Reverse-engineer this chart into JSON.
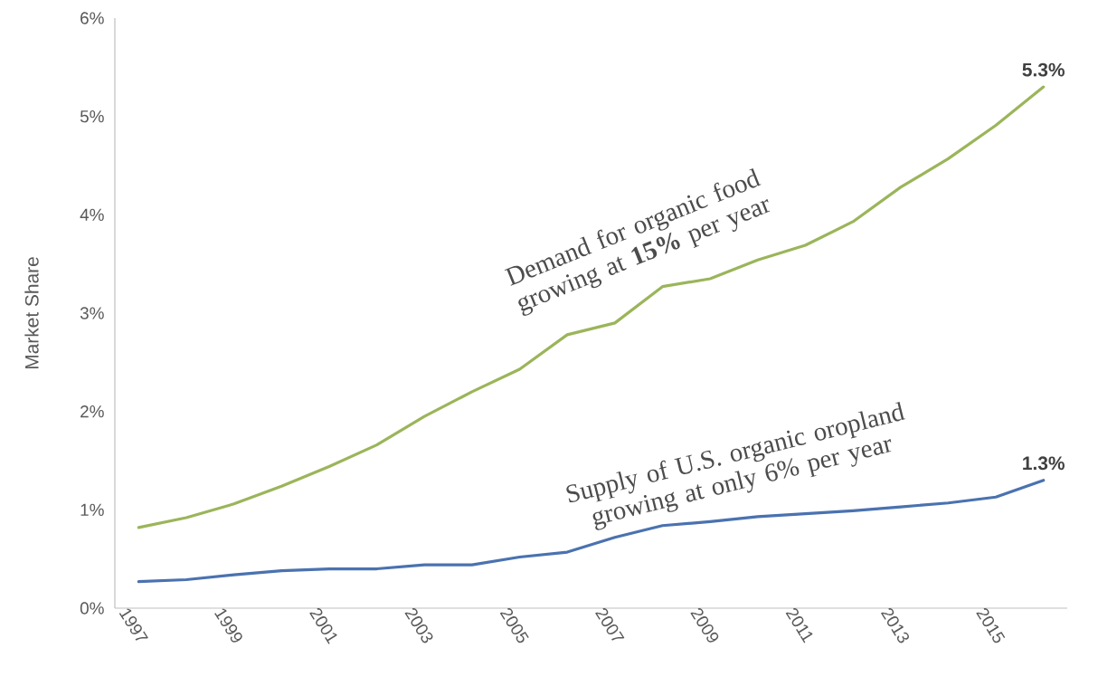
{
  "chart_data": {
    "type": "line",
    "ylabel": "Market Share",
    "x": [
      1997,
      1998,
      1999,
      2000,
      2001,
      2002,
      2003,
      2004,
      2005,
      2006,
      2007,
      2008,
      2009,
      2010,
      2011,
      2012,
      2013,
      2014,
      2015,
      2016
    ],
    "series": [
      {
        "color": "#9bb55a",
        "values": [
          0.82,
          0.92,
          1.06,
          1.24,
          1.44,
          1.66,
          1.95,
          2.2,
          2.43,
          2.78,
          2.9,
          3.27,
          3.35,
          3.54,
          3.69,
          3.93,
          4.28,
          4.57,
          4.91,
          5.3
        ]
      },
      {
        "color": "#4a72b0",
        "values": [
          0.27,
          0.29,
          0.34,
          0.38,
          0.4,
          0.4,
          0.44,
          0.44,
          0.52,
          0.57,
          0.72,
          0.84,
          0.88,
          0.93,
          0.96,
          0.99,
          1.03,
          1.07,
          1.13,
          1.3
        ]
      }
    ],
    "xlim": [
      1996.5,
      2016.5
    ],
    "xticks": [
      1997,
      1999,
      2001,
      2003,
      2005,
      2007,
      2009,
      2011,
      2013,
      2015
    ],
    "ylim": [
      0,
      6
    ],
    "yticks": [
      {
        "value": 0,
        "label": "0%"
      },
      {
        "value": 1,
        "label": "1%"
      },
      {
        "value": 2,
        "label": "2%"
      },
      {
        "value": 3,
        "label": "3%"
      },
      {
        "value": 4,
        "label": "4%"
      },
      {
        "value": 5,
        "label": "5%"
      },
      {
        "value": 6,
        "label": "6%"
      }
    ],
    "annotations": [
      "Demand for organic food growing at **15%** per year",
      "Supply of U.S. organic oropland growing at only 6% per year",
      {
        "text": "5.3%",
        "x": 2016,
        "y": 5.3
      },
      {
        "text": "1.3%",
        "x": 2016,
        "y": 1.3
      }
    ],
    "grid": false,
    "marker": "none",
    "line_style": "solid"
  }
}
